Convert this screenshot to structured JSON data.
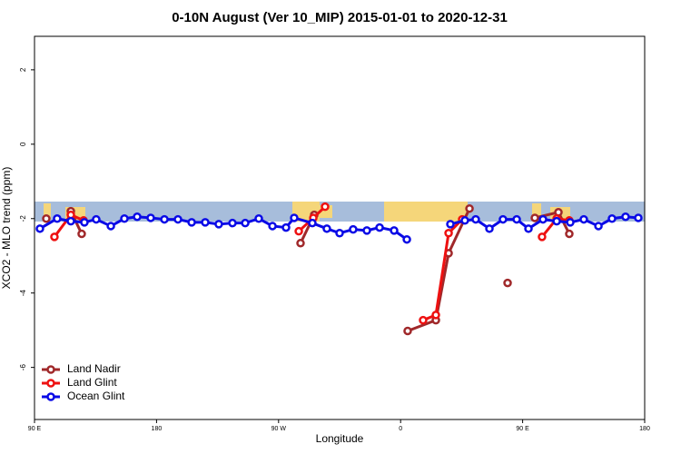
{
  "chart_data": {
    "type": "line",
    "title": "0-10N August (Ver 10_MIP)   2015-01-01 to 2020-12-31",
    "x_label": "Longitude",
    "y_label": "XCO2 - MLO trend (ppm)",
    "xlim": [
      90,
      540
    ],
    "ylim": [
      -7.4,
      2.9
    ],
    "xticks": [
      {
        "value": 90,
        "label": "90 E"
      },
      {
        "value": 180,
        "label": "180"
      },
      {
        "value": 270,
        "label": "90 W"
      },
      {
        "value": 360,
        "label": "0"
      },
      {
        "value": 450,
        "label": "90 E"
      },
      {
        "value": 540,
        "label": "180"
      }
    ],
    "yticks": [
      2,
      0,
      -2,
      -4,
      -6
    ],
    "legend": "bottom-left",
    "series": [
      {
        "name": "Land Nadir",
        "color": "#a0282a",
        "x": [
          98.7,
          null,
          116.8,
          124.8,
          null,
          286.2,
          296.3,
          null,
          365.2,
          386,
          395.4,
          410.8,
          null,
          438.9,
          null,
          459,
          476.4,
          484.4
        ],
        "values": [
          -2.0,
          null,
          -1.8,
          -2.41,
          null,
          -2.66,
          -1.9,
          null,
          -5.02,
          -4.73,
          -2.93,
          -1.73,
          null,
          -3.73,
          null,
          -1.98,
          -1.83,
          -2.41
        ]
      },
      {
        "name": "Land Glint",
        "color": "#ee1111",
        "x": [
          104.7,
          116.8,
          126.2,
          null,
          284.9,
          295.6,
          304.3,
          null,
          376.6,
          386,
          395.4,
          405.4,
          null,
          464.3,
          475.1,
          484.4
        ],
        "values": [
          -2.49,
          -1.9,
          -2.05,
          null,
          -2.34,
          -1.98,
          -1.68,
          null,
          -4.73,
          -4.59,
          -2.39,
          -2.02,
          null,
          -2.49,
          -2.0,
          -2.05
        ]
      },
      {
        "name": "Ocean Glint",
        "color": "#0a0ae6",
        "x": [
          94,
          106.7,
          116.8,
          126.8,
          135.5,
          146.3,
          156.3,
          165.7,
          175.7,
          185.8,
          195.8,
          205.9,
          215.9,
          225.9,
          236,
          245.4,
          255.4,
          265.5,
          275.5,
          281.5,
          294.9,
          305.6,
          315,
          325,
          335.1,
          344.5,
          355.2,
          364.6,
          null,
          396.7,
          407.4,
          415.4,
          425.5,
          435.5,
          445.6,
          454.3,
          465,
          475.1,
          485.1,
          495.1,
          505.9,
          515.9,
          525.9,
          535.3
        ],
        "values": [
          -2.27,
          -2.0,
          -2.07,
          -2.1,
          -2.02,
          -2.2,
          -2.0,
          -1.95,
          -1.98,
          -2.02,
          -2.02,
          -2.1,
          -2.1,
          -2.15,
          -2.12,
          -2.12,
          -2.0,
          -2.2,
          -2.24,
          -1.98,
          -2.12,
          -2.27,
          -2.39,
          -2.29,
          -2.32,
          -2.24,
          -2.32,
          -2.56,
          null,
          -2.15,
          -2.05,
          -2.02,
          -2.27,
          -2.02,
          -2.02,
          -2.27,
          -2.02,
          -2.07,
          -2.1,
          -2.02,
          -2.2,
          -2.0,
          -1.95,
          -1.98
        ]
      }
    ]
  }
}
